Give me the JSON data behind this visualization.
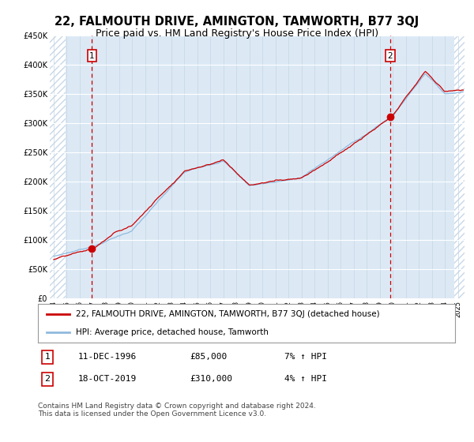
{
  "title": "22, FALMOUTH DRIVE, AMINGTON, TAMWORTH, B77 3QJ",
  "subtitle": "Price paid vs. HM Land Registry's House Price Index (HPI)",
  "title_fontsize": 10.5,
  "subtitle_fontsize": 9,
  "bg_color": "#dce9f5",
  "hatch_color": "#c8d8e8",
  "line1_color": "#cc0000",
  "line2_color": "#90bade",
  "purchase1_x": 1996.94,
  "purchase1_y": 85000,
  "purchase2_x": 2019.79,
  "purchase2_y": 310000,
  "ylim": [
    0,
    450000
  ],
  "xlim_start": 1993.7,
  "xlim_end": 2025.5,
  "legend_line1": "22, FALMOUTH DRIVE, AMINGTON, TAMWORTH, B77 3QJ (detached house)",
  "legend_line2": "HPI: Average price, detached house, Tamworth",
  "note1_label": "1",
  "note1_date": "11-DEC-1996",
  "note1_price": "£85,000",
  "note1_hpi": "7% ↑ HPI",
  "note2_label": "2",
  "note2_date": "18-OCT-2019",
  "note2_price": "£310,000",
  "note2_hpi": "4% ↑ HPI",
  "footer": "Contains HM Land Registry data © Crown copyright and database right 2024.\nThis data is licensed under the Open Government Licence v3.0.",
  "yticks": [
    0,
    50000,
    100000,
    150000,
    200000,
    250000,
    300000,
    350000,
    400000,
    450000
  ],
  "ytick_labels": [
    "£0",
    "£50K",
    "£100K",
    "£150K",
    "£200K",
    "£250K",
    "£300K",
    "£350K",
    "£400K",
    "£450K"
  ]
}
